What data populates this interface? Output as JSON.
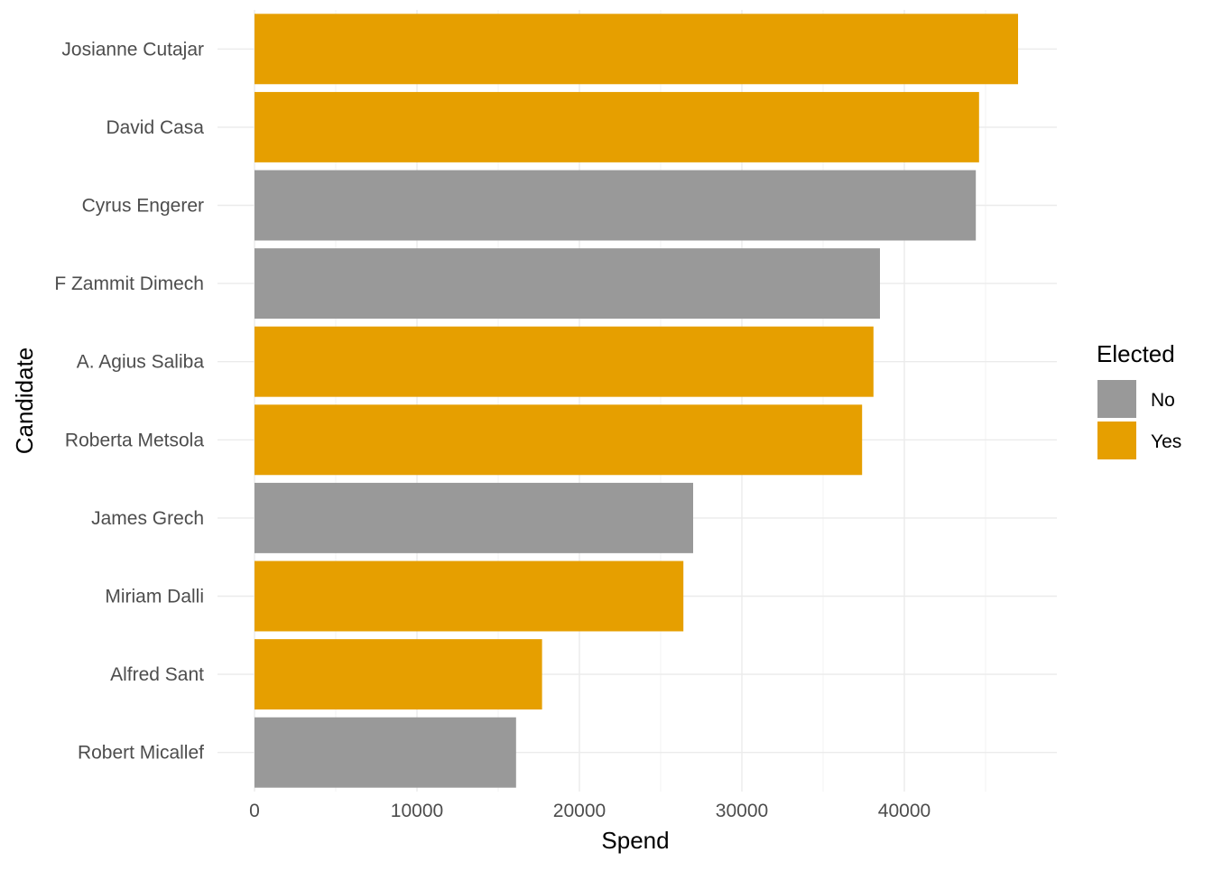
{
  "chart_data": {
    "type": "bar",
    "orientation": "horizontal",
    "xlabel": "Spend",
    "ylabel": "Candidate",
    "xlim": [
      0,
      49300
    ],
    "x_ticks": [
      0,
      10000,
      20000,
      30000,
      40000
    ],
    "x_tick_labels": [
      "0",
      "10000",
      "20000",
      "30000",
      "40000"
    ],
    "grid": true,
    "legend": {
      "title": "Elected",
      "position": "right",
      "entries": [
        {
          "label": "No",
          "color": "#999999"
        },
        {
          "label": "Yes",
          "color": "#E69F00"
        }
      ]
    },
    "categories": [
      "Josianne Cutajar",
      "David Casa",
      "Cyrus Engerer",
      "F Zammit Dimech",
      "A. Agius Saliba",
      "Roberta Metsola",
      "James Grech",
      "Miriam Dalli",
      "Alfred Sant",
      "Robert Micallef"
    ],
    "values": [
      47000,
      44600,
      44400,
      38500,
      38100,
      37400,
      27000,
      26400,
      17700,
      16100
    ],
    "elected": [
      "Yes",
      "Yes",
      "No",
      "No",
      "Yes",
      "Yes",
      "No",
      "Yes",
      "Yes",
      "No"
    ]
  }
}
